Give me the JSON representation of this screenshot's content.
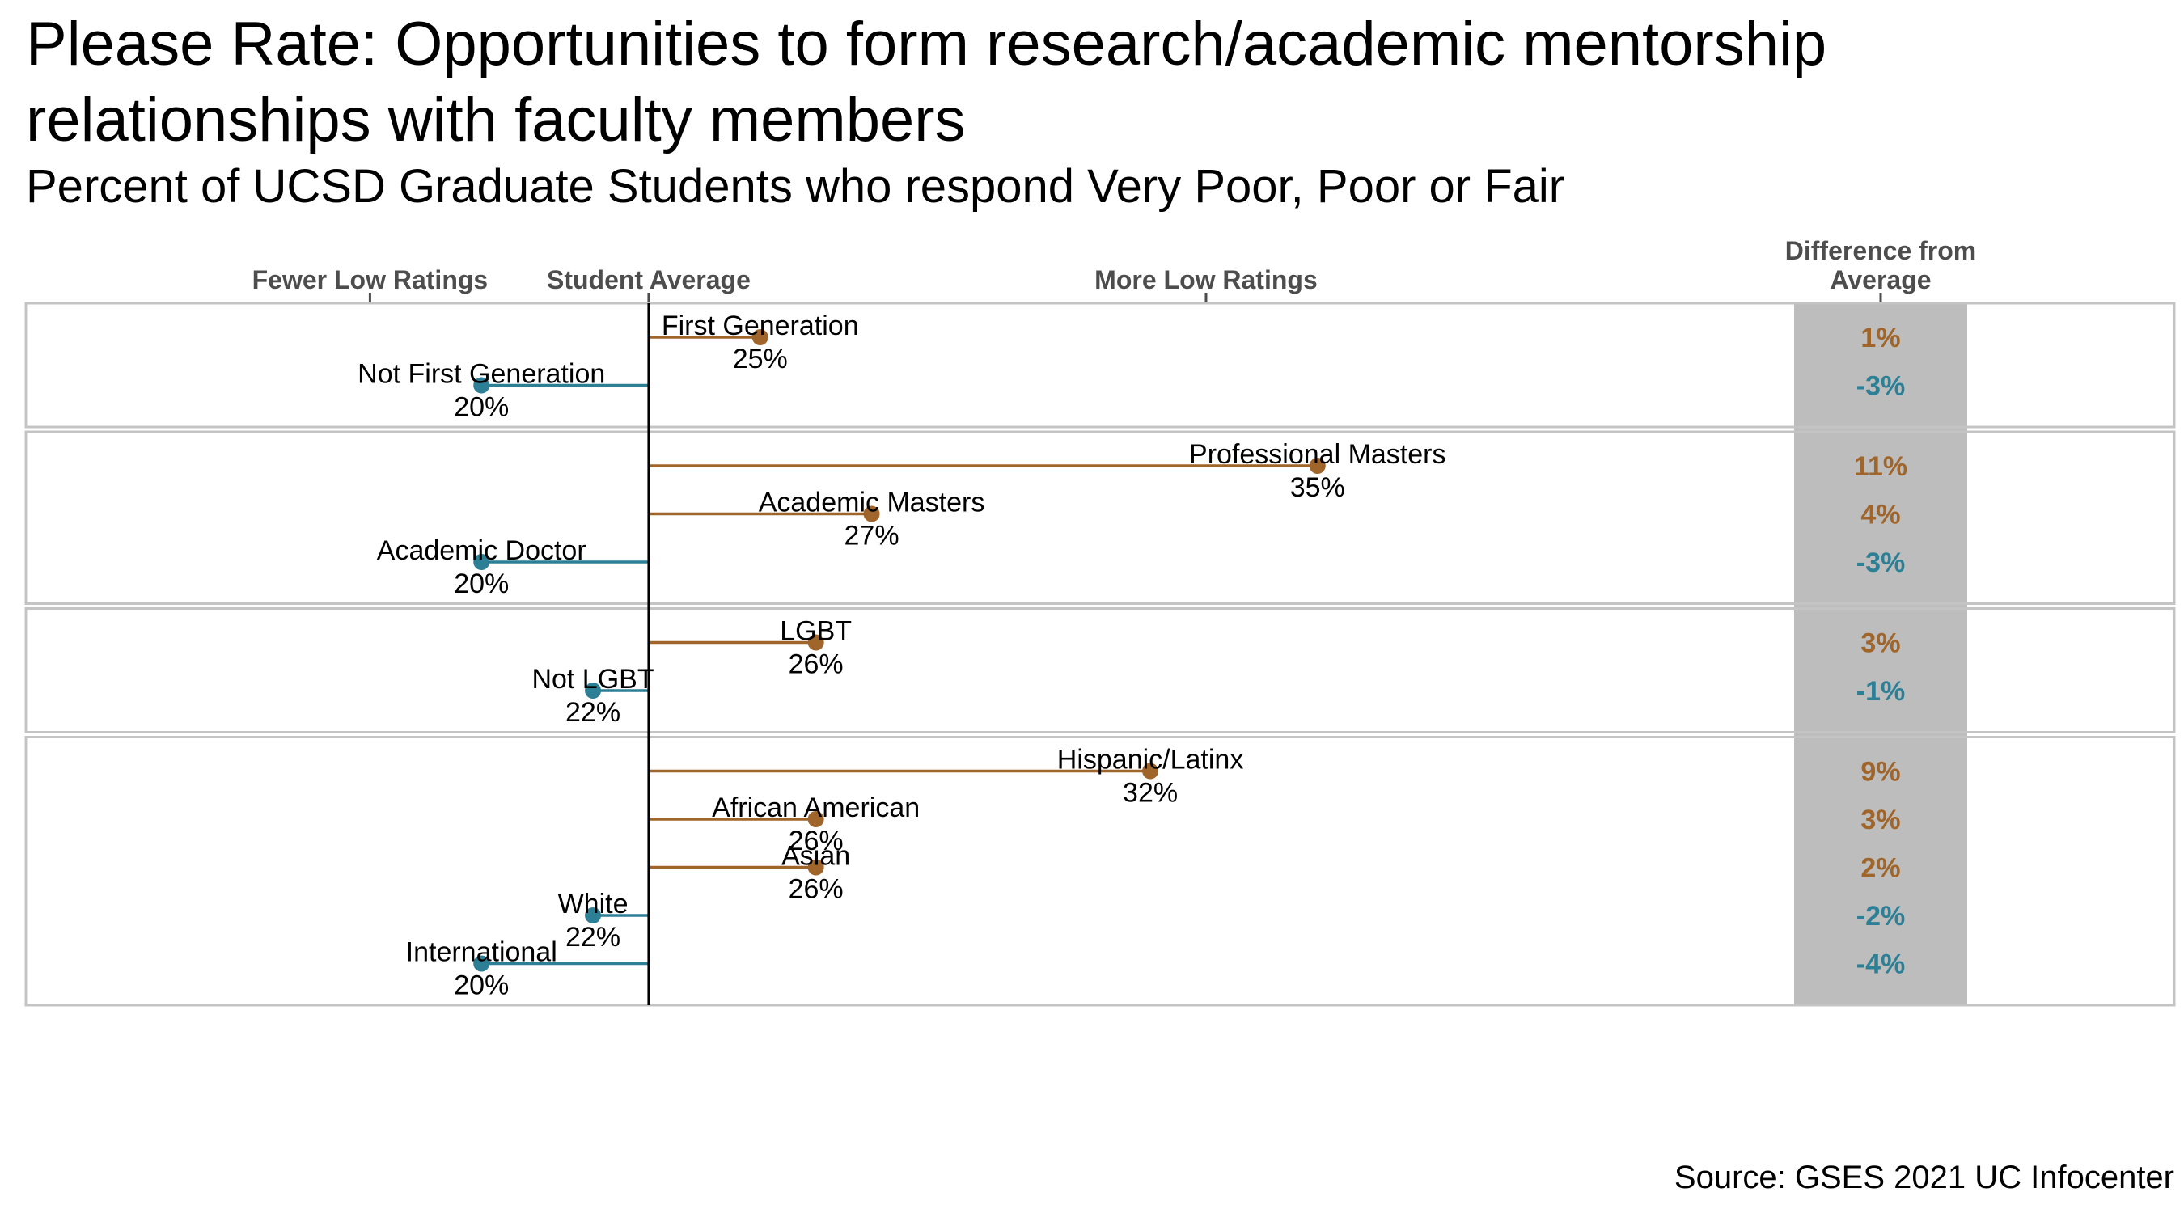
{
  "title": "Please Rate: Opportunities to form research/academic mentorship relationships with faculty members",
  "subtitle": "Percent of UCSD Graduate Students who respond Very Poor, Poor or Fair",
  "source": "Source: GSES 2021 UC Infocenter",
  "colors": {
    "above": "#a0652a",
    "below": "#2c7f95",
    "diff_panel": "#bdbdbd",
    "panel_border": "#c4c4c4"
  },
  "chart_data": {
    "type": "lollipop",
    "average": 23,
    "xlim": [
      12,
      43
    ],
    "axis_labels": [
      {
        "text": "Fewer Low Ratings",
        "value": 18
      },
      {
        "text": "Student Average",
        "value": 23
      },
      {
        "text": "More Low Ratings",
        "value": 33
      }
    ],
    "diff_header": [
      "Difference from",
      "Average"
    ],
    "groups": [
      {
        "items": [
          {
            "label": "First Generation",
            "value": 25,
            "value_label": "25%",
            "diff": "1%",
            "direction": "above"
          },
          {
            "label": "Not First Generation",
            "value": 20,
            "value_label": "20%",
            "diff": "-3%",
            "direction": "below"
          }
        ]
      },
      {
        "items": [
          {
            "label": "Professional Masters",
            "value": 35,
            "value_label": "35%",
            "diff": "11%",
            "direction": "above"
          },
          {
            "label": "Academic Masters",
            "value": 27,
            "value_label": "27%",
            "diff": "4%",
            "direction": "above"
          },
          {
            "label": "Academic Doctor",
            "value": 20,
            "value_label": "20%",
            "diff": "-3%",
            "direction": "below"
          }
        ]
      },
      {
        "items": [
          {
            "label": "LGBT",
            "value": 26,
            "value_label": "26%",
            "diff": "3%",
            "direction": "above"
          },
          {
            "label": "Not LGBT",
            "value": 22,
            "value_label": "22%",
            "diff": "-1%",
            "direction": "below"
          }
        ]
      },
      {
        "items": [
          {
            "label": "Hispanic/Latinx",
            "value": 32,
            "value_label": "32%",
            "diff": "9%",
            "direction": "above"
          },
          {
            "label": "African American",
            "value": 26,
            "value_label": "26%",
            "diff": "3%",
            "direction": "above"
          },
          {
            "label": "Asian",
            "value": 26,
            "value_label": "26%",
            "diff": "2%",
            "direction": "above"
          },
          {
            "label": "White",
            "value": 22,
            "value_label": "22%",
            "diff": "-2%",
            "direction": "below"
          },
          {
            "label": "International",
            "value": 20,
            "value_label": "20%",
            "diff": "-4%",
            "direction": "below"
          }
        ]
      }
    ]
  }
}
